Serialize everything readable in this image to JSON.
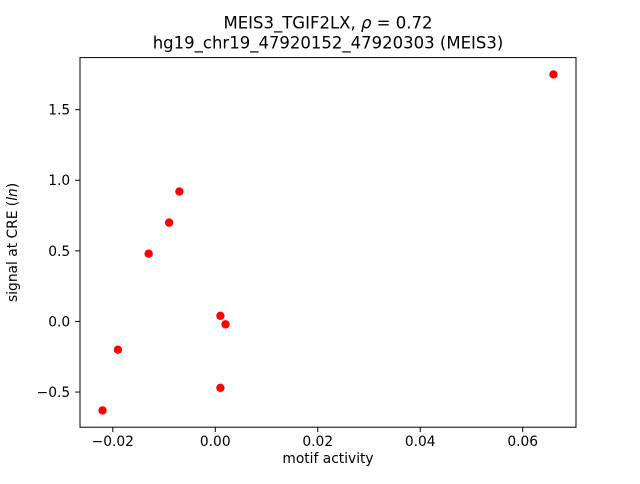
{
  "chart_data": {
    "type": "scatter",
    "title": "MEIS3_TGIF2LX, ρ = 0.72",
    "title_parts": {
      "prefix": "MEIS3_TGIF2LX, ",
      "rho": "ρ",
      "suffix": " = 0.72"
    },
    "subtitle": "hg19_chr19_47920152_47920303 (MEIS3)",
    "xlabel": "motif activity",
    "ylabel": "signal at CRE (ln)",
    "ylabel_parts": {
      "prefix": "signal at CRE (",
      "italic": "ln",
      "suffix": ")"
    },
    "marker_color": "#ff0000",
    "axis_color": "#000000",
    "points": [
      {
        "x": -0.022,
        "y": -0.63
      },
      {
        "x": -0.019,
        "y": -0.2
      },
      {
        "x": -0.013,
        "y": 0.48
      },
      {
        "x": -0.009,
        "y": 0.7
      },
      {
        "x": -0.007,
        "y": 0.92
      },
      {
        "x": 0.001,
        "y": 0.04
      },
      {
        "x": 0.002,
        "y": -0.02
      },
      {
        "x": 0.001,
        "y": -0.47
      },
      {
        "x": 0.066,
        "y": 1.75
      }
    ],
    "xticks": [
      -0.02,
      0,
      0.02,
      0.04,
      0.06
    ],
    "xtick_labels": [
      "−0.02",
      "0.00",
      "0.02",
      "0.04",
      "0.06"
    ],
    "yticks": [
      -0.5,
      0,
      0.5,
      1,
      1.5
    ],
    "ytick_labels": [
      "−0.5",
      "0.0",
      "0.5",
      "1.0",
      "1.5"
    ],
    "xlim": [
      -0.0264,
      0.0704
    ],
    "ylim": [
      -0.749,
      1.869
    ],
    "grid": false,
    "legend": null
  }
}
